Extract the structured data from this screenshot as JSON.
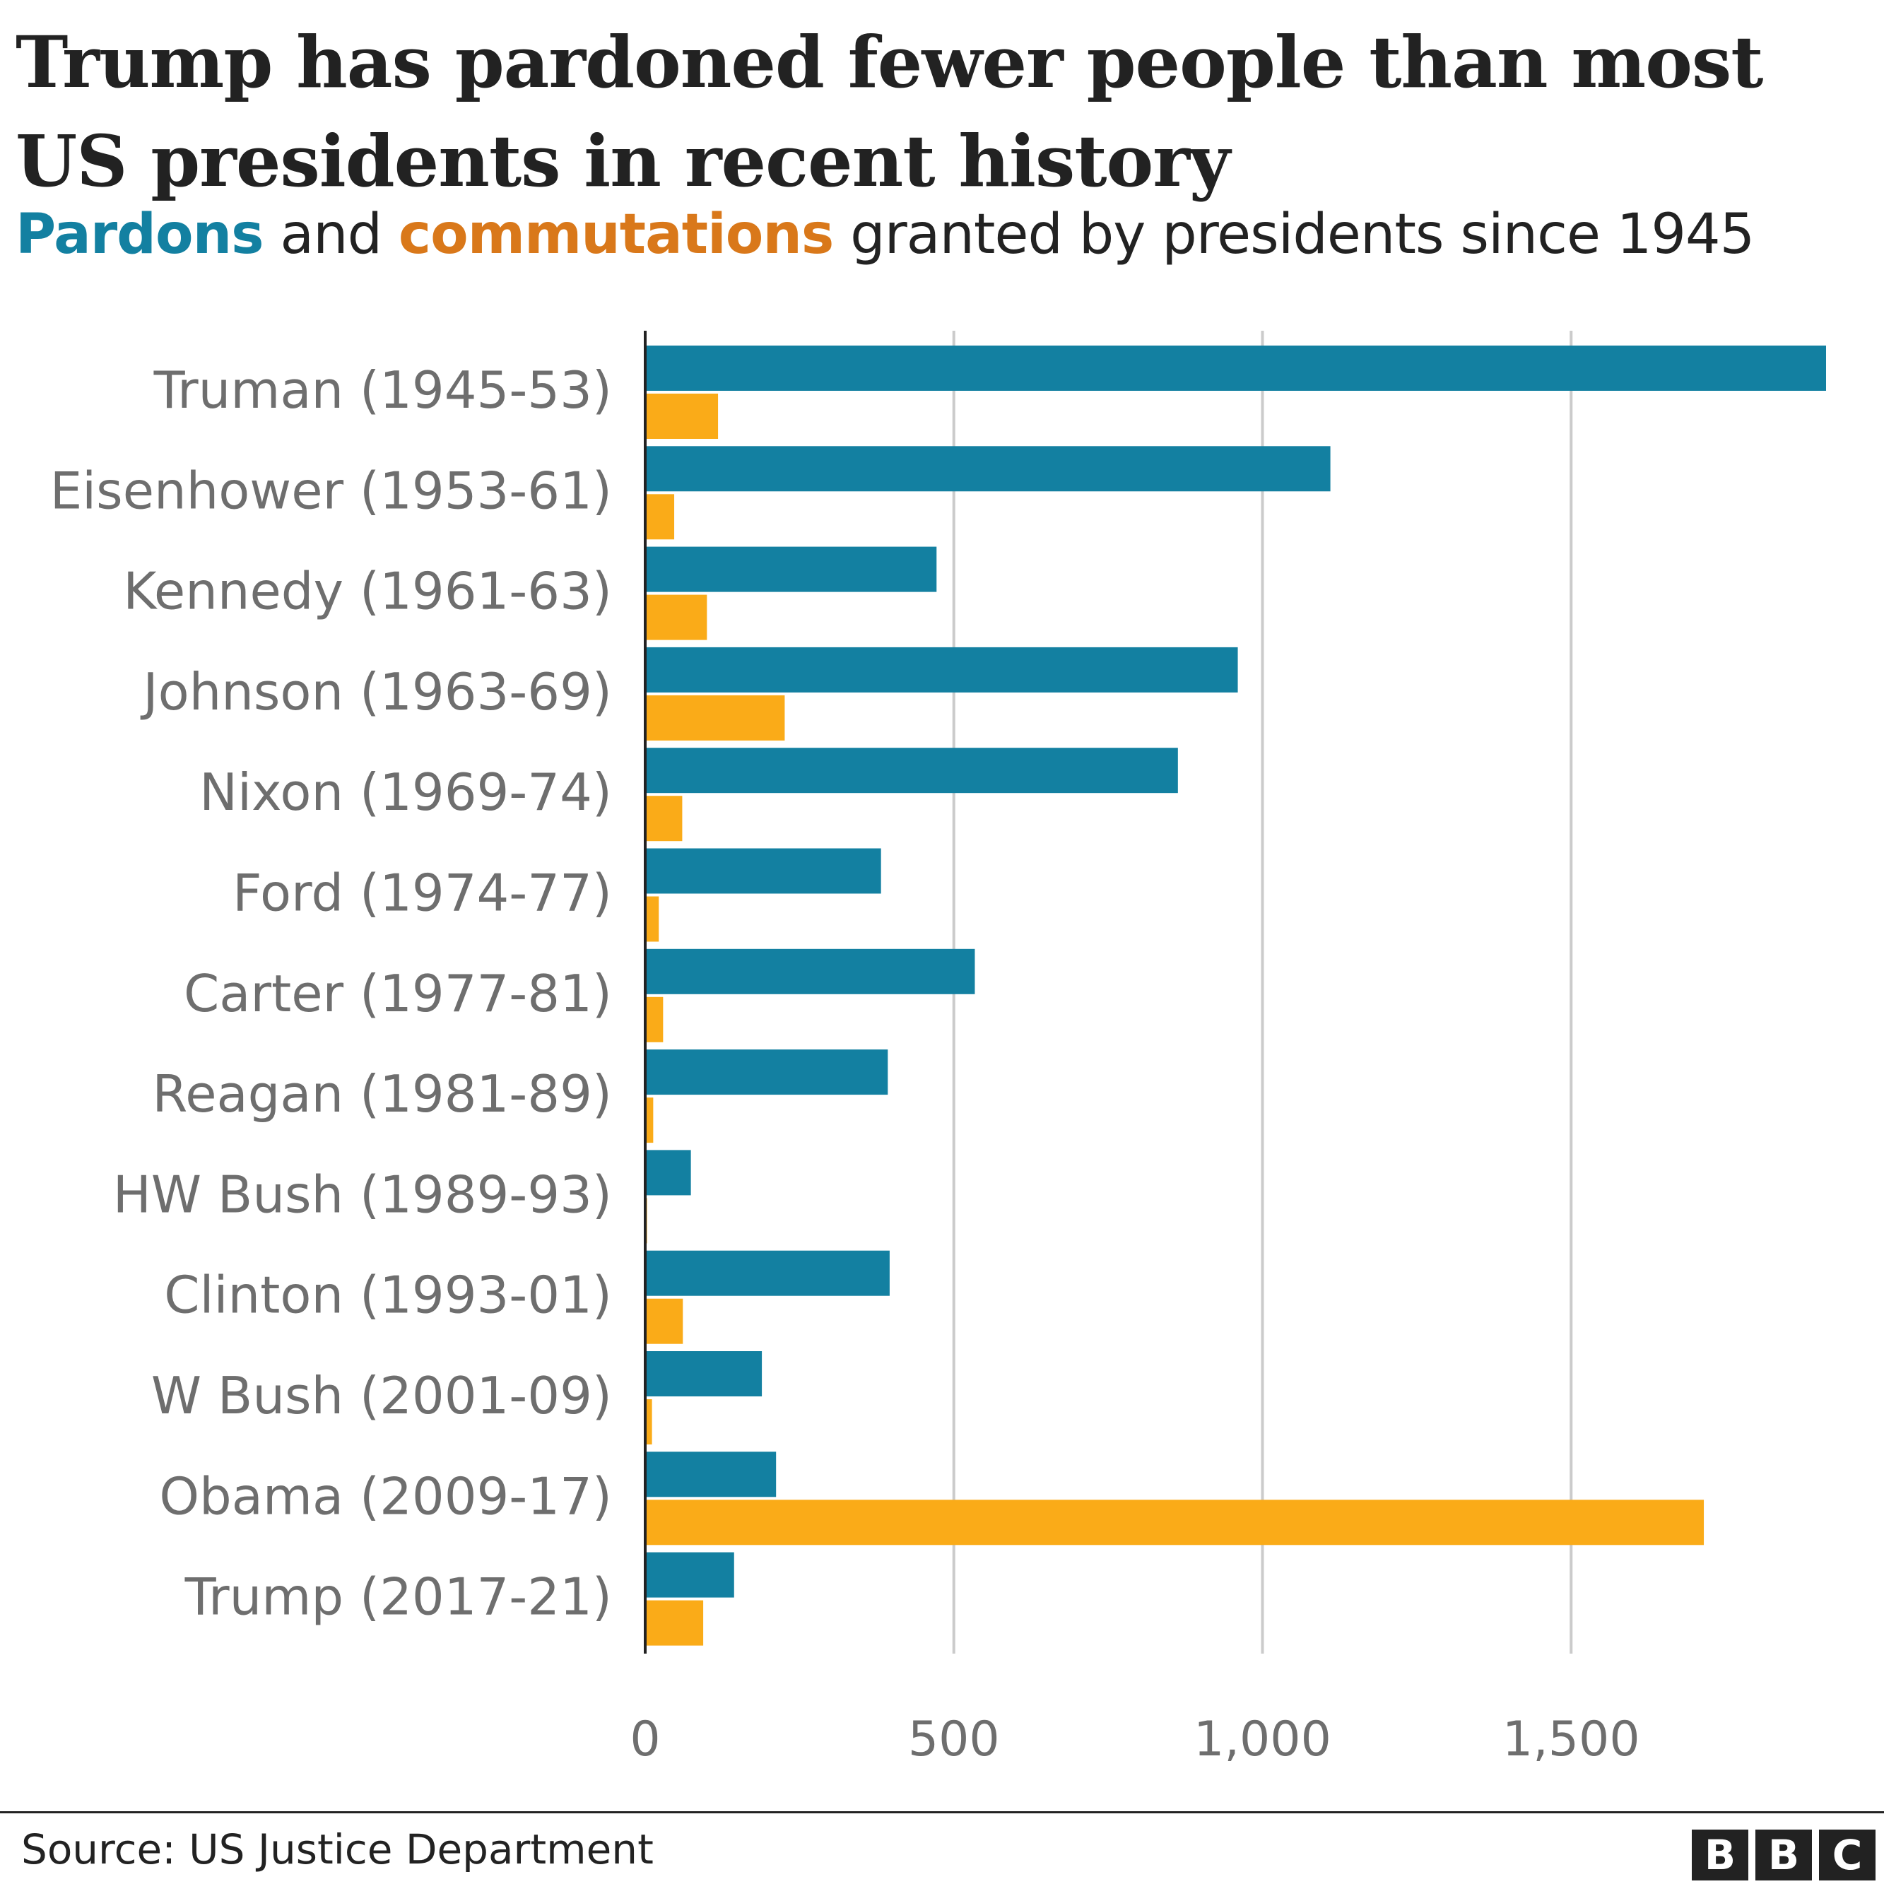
{
  "title": "Trump has pardoned fewer people than most US presidents in recent history",
  "subtitle": {
    "part1": "Pardons",
    "part2": " and ",
    "part3": "commutations",
    "part4": " granted by presidents since 1945"
  },
  "source": "Source: US Justice Department",
  "logo": {
    "letters": [
      "B",
      "B",
      "C"
    ]
  },
  "colors": {
    "pardons": "#1380A1",
    "commutations": "#FAAB18",
    "commutations_text": "#D9781A",
    "grid": "#cbcbcb",
    "axis": "#222222",
    "label": "#6e6e6e"
  },
  "chart_data": {
    "type": "bar",
    "orientation": "horizontal",
    "title": "Pardons and commutations granted by presidents since 1945",
    "categories": [
      "Truman (1945-53)",
      "Eisenhower (1953-61)",
      "Kennedy (1961-63)",
      "Johnson (1963-69)",
      "Nixon (1969-74)",
      "Ford (1974-77)",
      "Carter (1977-81)",
      "Reagan (1981-89)",
      "HW Bush (1989-93)",
      "Clinton (1993-01)",
      "W Bush (2001-09)",
      "Obama (2009-17)",
      "Trump (2017-21)"
    ],
    "series": [
      {
        "name": "Pardons",
        "values": [
          1913,
          1110,
          472,
          960,
          863,
          382,
          534,
          393,
          74,
          396,
          189,
          212,
          144
        ]
      },
      {
        "name": "Commutations",
        "values": [
          118,
          47,
          100,
          226,
          60,
          22,
          29,
          13,
          3,
          61,
          11,
          1715,
          94
        ]
      }
    ],
    "xlim": [
      0,
      1913
    ],
    "xticks": [
      0,
      500,
      1000,
      1500
    ],
    "xtick_labels": [
      "0",
      "500",
      "1,000",
      "1,500"
    ],
    "grid": true,
    "xlabel": "",
    "ylabel": ""
  }
}
